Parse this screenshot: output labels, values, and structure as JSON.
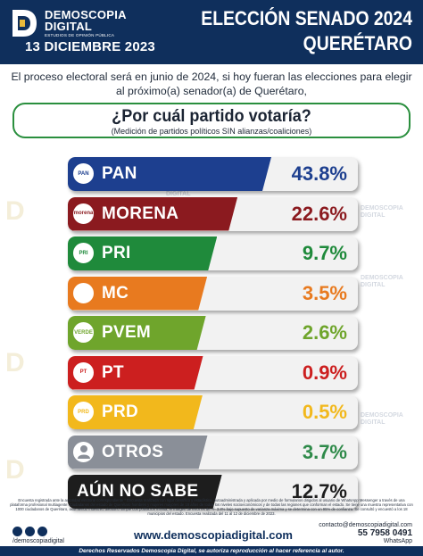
{
  "header": {
    "brand_line1": "DEMOSCOPIA",
    "brand_line2": "DIGITAL",
    "brand_sub": "ESTUDIOS DE OPINIÓN PÚBLICA",
    "date": "13 DICIEMBRE 2023",
    "title_line1": "ELECCIÓN SENADO 2024",
    "title_line2": "QUERÉTARO"
  },
  "intro": "El proceso electoral será en junio de 2024, si hoy fueran las elecciones para elegir al próximo(a) senador(a) de Querétaro,",
  "question": {
    "text": "¿Por cuál partido votaría?",
    "subtitle": "(Medición de partidos políticos SIN alianzas/coaliciones)"
  },
  "chart_data": {
    "type": "bar",
    "orientation": "horizontal",
    "categories": [
      "PAN",
      "MORENA",
      "PRI",
      "MC",
      "PVEM",
      "PT",
      "PRD",
      "OTROS",
      "AÚN NO SABE"
    ],
    "values": [
      43.8,
      22.6,
      9.7,
      3.5,
      2.6,
      0.9,
      0.5,
      3.7,
      12.7
    ],
    "value_labels": [
      "43.8%",
      "22.6%",
      "9.7%",
      "3.5%",
      "2.6%",
      "0.9%",
      "0.5%",
      "3.7%",
      "12.7%"
    ],
    "colors": [
      "#1d3f8f",
      "#8b1a1f",
      "#1f8a3b",
      "#e87a1f",
      "#6fa52c",
      "#cc1f1f",
      "#f2b81c",
      "#8a8f98",
      "#1d1d1d"
    ],
    "icons": [
      "pan-logo",
      "morena-logo",
      "pri-logo",
      "mc-logo",
      "pvem-logo",
      "pt-logo",
      "prd-logo",
      "person-icon",
      "question-icon"
    ],
    "icon_texts": [
      "PAN",
      "morena",
      "PRI",
      "",
      "VERDE",
      "PT",
      "PRD",
      "",
      ""
    ],
    "value_colors": [
      "#1d3f8f",
      "#8b1a1f",
      "#1f8a3b",
      "#e87a1f",
      "#6fa52c",
      "#cc1f1f",
      "#f2b81c",
      "#2f8a4a",
      "#1d1d1d"
    ]
  },
  "watermark": {
    "line1": "DEMOSCOPIA",
    "line2": "DIGITAL"
  },
  "footer": {
    "fine_print": "Encuesta registrada ante la autoridad electoral correspondiente * Encuesta realizada con rigor científico y estadístico, autoadministrada y aplicada por medio de formularios dirigidos al usuario de WhatsApp Messenger a través de una plataforma profesional multiagente. Ciudadanos del estado de Querétaro hombres y mujeres mayores de 18 años de todos los niveles socioeconómicos y de todas las regiones que conforman el estado. Se tiene una muestra representativa con 1000 ciudadanos de Querétaro, asumiendo muestreo aleatorio simple con población infinita, el margen de error es de +/- 3.8% bajo supuesto de varianza máxima y se determina con un 95% de confianza. Se consultó y encuestó a los 18 municipios del estado. Encuesta realizada del 11 al 12 de diciembre de 2023.",
    "handle": "/demoscopiadigital",
    "web": "www.demoscopiadigital.com",
    "email": "contacto@demoscopiadigital.com",
    "phone": "55 7958 0491",
    "whatsapp": "WhatsApp",
    "rights": "Derechos Reservados Demoscopia Digital, se autoriza reproducción al hacer referencia al autor."
  }
}
